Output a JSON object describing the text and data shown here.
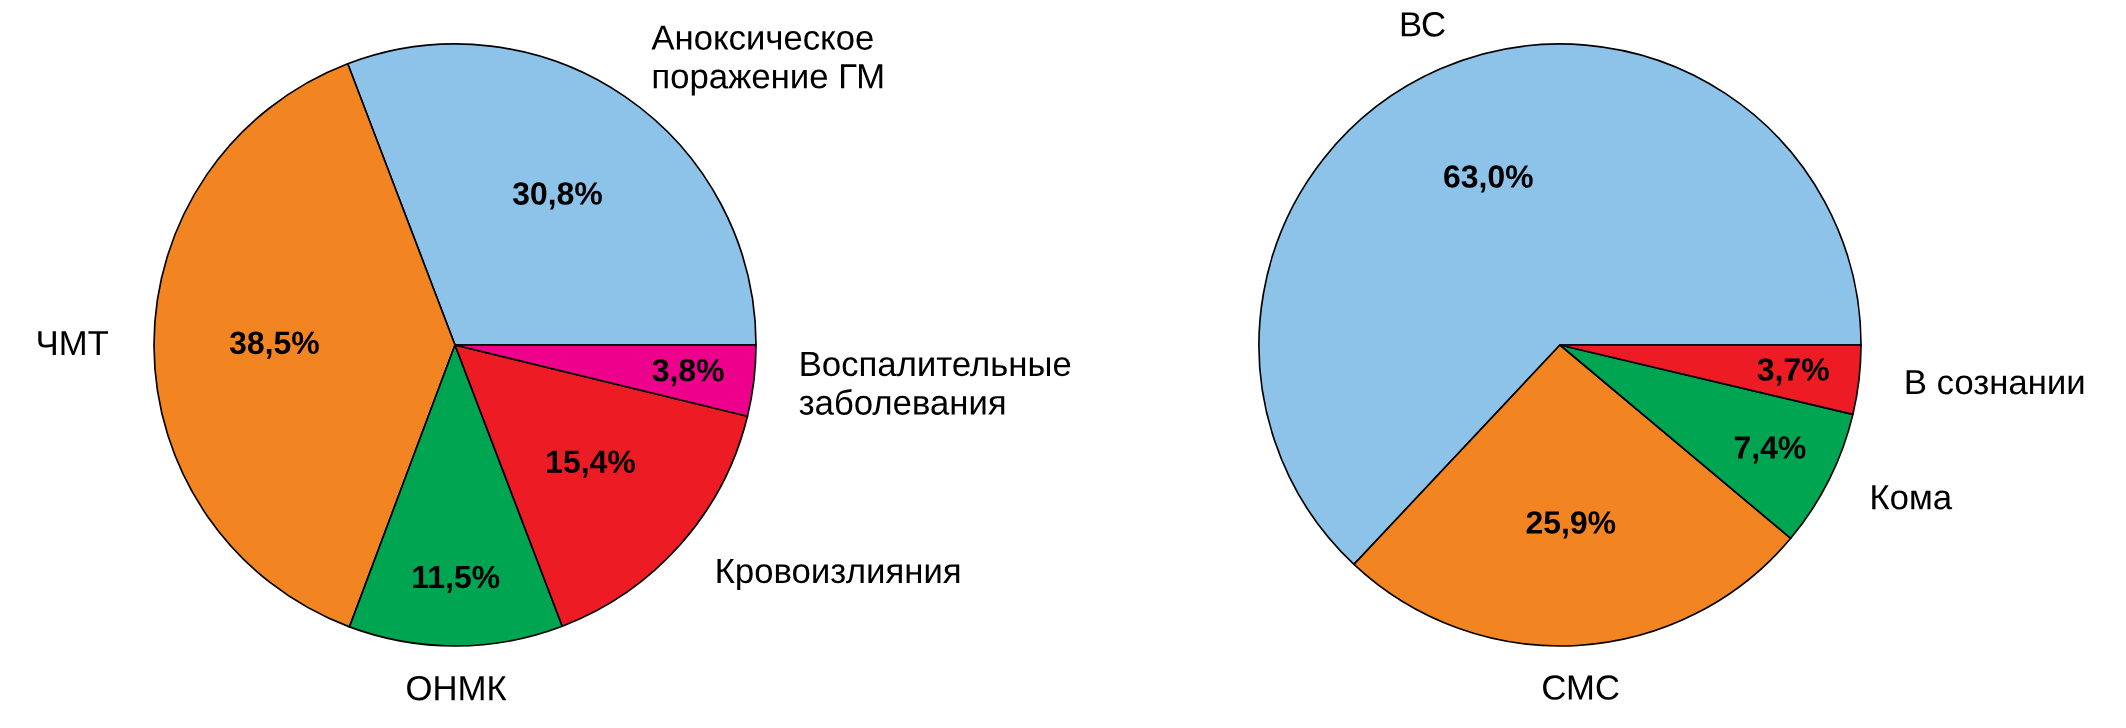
{
  "chart_data": [
    {
      "type": "pie",
      "categories": [
        "Аноксическое\nпоражение ГМ",
        "ЧМТ",
        "ОНМК",
        "Кровоизлияния",
        "Воспалительные\nзаболевания"
      ],
      "values": [
        30.8,
        38.5,
        11.5,
        15.4,
        3.8
      ],
      "colors": [
        "#8dc3e8",
        "#f28522",
        "#00a551",
        "#ed1c24",
        "#ec008c"
      ],
      "value_labels": [
        "30,8%",
        "38,5%",
        "11,5%",
        "15,4%",
        "3,8%"
      ]
    },
    {
      "type": "pie",
      "categories": [
        "ВС",
        "СМС",
        "Кома",
        "В сознании"
      ],
      "values": [
        63.0,
        25.9,
        7.4,
        3.7
      ],
      "colors": [
        "#8dc3e8",
        "#f28522",
        "#00a551",
        "#ed1c24"
      ],
      "value_labels": [
        "63,0%",
        "25,9%",
        "7,4%",
        "3,7%"
      ]
    }
  ]
}
